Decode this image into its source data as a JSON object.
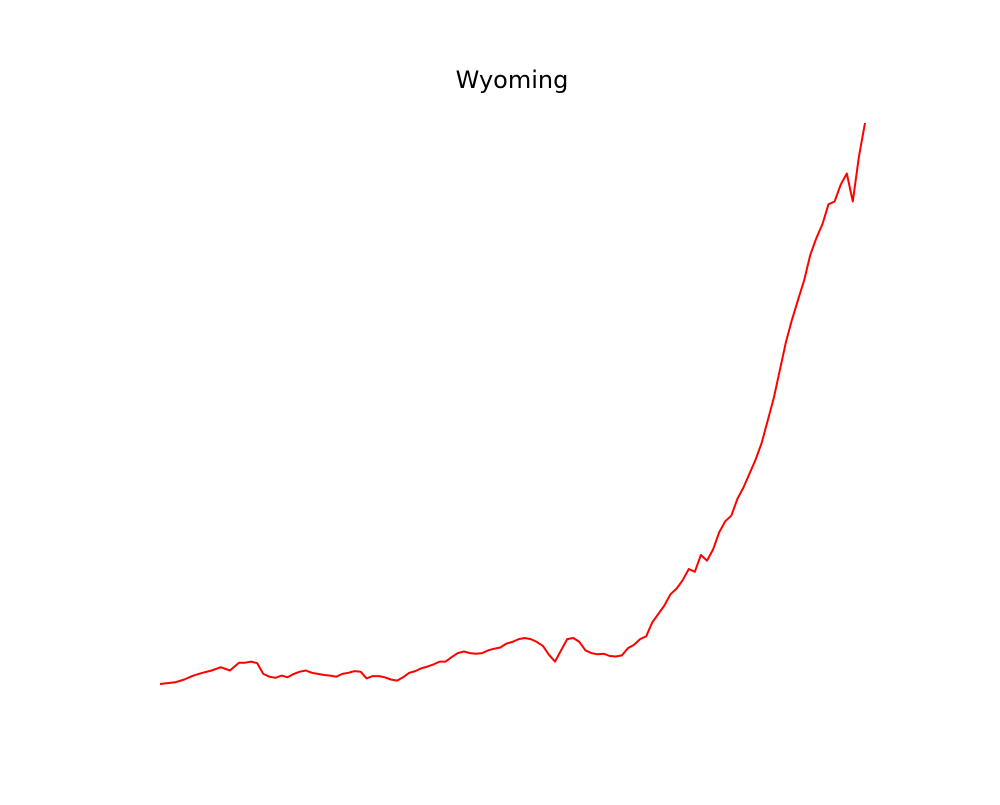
{
  "chart_data": {
    "type": "line",
    "title": "Wyoming",
    "xlabel": "",
    "ylabel": "",
    "axes_visible": false,
    "grid": false,
    "xlim": [
      0,
      232
    ],
    "ylim": [
      0,
      100
    ],
    "series": [
      {
        "color": "#ff0000",
        "x": [
          0,
          5,
          8,
          11,
          14,
          17,
          20,
          23,
          26,
          28,
          30,
          32,
          34,
          36,
          38,
          40,
          42,
          44,
          46,
          48,
          50,
          52,
          54,
          56,
          58,
          60,
          62,
          64,
          66,
          68,
          70,
          72,
          74,
          76,
          78,
          80,
          82,
          84,
          86,
          88,
          90,
          92,
          94,
          96,
          98,
          100,
          102,
          104,
          106,
          108,
          110,
          112,
          114,
          116,
          118,
          120,
          122,
          124,
          126,
          128,
          130,
          132,
          134,
          136,
          138,
          140,
          142,
          144,
          146,
          148,
          150,
          152,
          154,
          156,
          158,
          160,
          162,
          164,
          166,
          168,
          170,
          172,
          174,
          176,
          178,
          180,
          182,
          184,
          186,
          188,
          190,
          192,
          194,
          196,
          198,
          200,
          202,
          204,
          206,
          208,
          210,
          212,
          214,
          216,
          218,
          220,
          222,
          224,
          226,
          228,
          230,
          232
        ],
        "y": [
          0.0,
          0.3,
          0.8,
          1.5,
          2.0,
          2.4,
          3.0,
          2.4,
          3.8,
          3.8,
          4.0,
          3.7,
          1.8,
          1.3,
          1.1,
          1.5,
          1.2,
          1.8,
          2.2,
          2.4,
          2.0,
          1.8,
          1.6,
          1.5,
          1.3,
          1.8,
          2.0,
          2.3,
          2.2,
          1.0,
          1.4,
          1.4,
          1.2,
          0.8,
          0.6,
          1.2,
          2.0,
          2.3,
          2.8,
          3.1,
          3.5,
          4.0,
          4.0,
          4.8,
          5.5,
          5.8,
          5.5,
          5.4,
          5.5,
          6.0,
          6.3,
          6.5,
          7.2,
          7.5,
          8.0,
          8.2,
          8.0,
          7.5,
          6.8,
          5.2,
          4.0,
          6.0,
          8.0,
          8.2,
          7.5,
          6.0,
          5.5,
          5.3,
          5.4,
          5.0,
          4.9,
          5.1,
          6.4,
          7.0,
          8.0,
          8.5,
          11.0,
          12.5,
          14.0,
          16.0,
          17.0,
          18.5,
          20.5,
          20.0,
          23.0,
          22.0,
          24.0,
          27.0,
          29.0,
          30.0,
          33.0,
          35.0,
          37.5,
          40.0,
          43.0,
          47.0,
          51.0,
          56.0,
          61.0,
          65.0,
          68.5,
          72.0,
          76.5,
          79.5,
          82.0,
          85.5,
          86.0,
          89.0,
          91.0,
          86.0,
          94.0,
          100.0
        ]
      }
    ]
  }
}
